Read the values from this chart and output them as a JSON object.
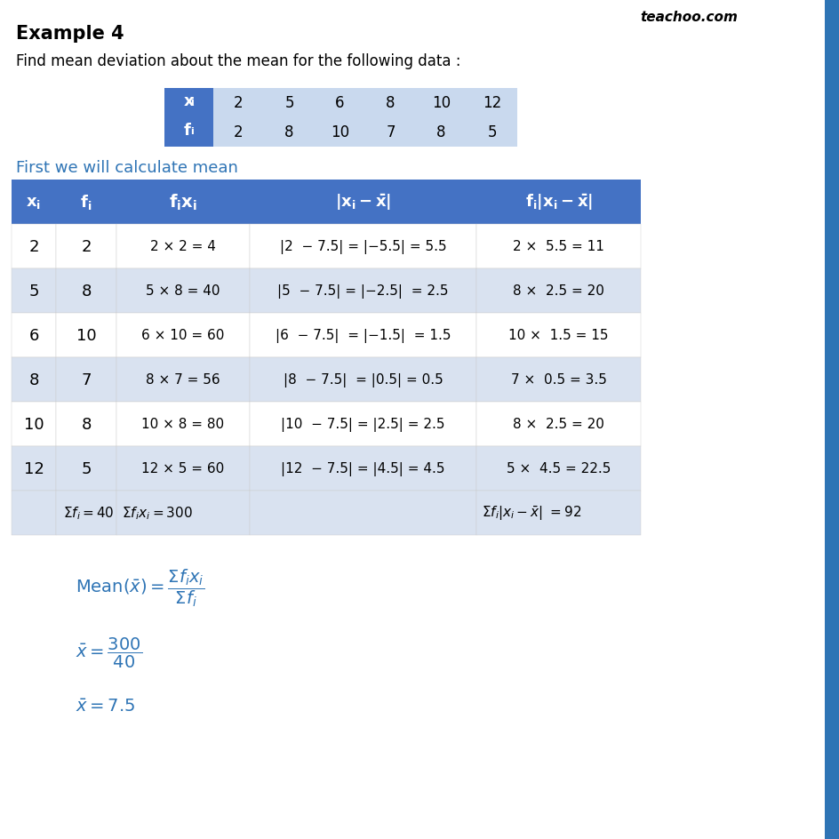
{
  "title": "Example 4",
  "subtitle": "Find mean deviation about the mean for the following data :",
  "watermark": "teachoo.com",
  "header_color": "#4472C4",
  "header_text_color": "#FFFFFF",
  "light_blue": "#C9D9EE",
  "alt_row": "#D9E2F0",
  "blue_text": "#2E74B5",
  "white": "#FFFFFF",
  "small_table": {
    "xi_vals": [
      2,
      5,
      6,
      8,
      10,
      12
    ],
    "fi_vals": [
      2,
      8,
      10,
      7,
      8,
      5
    ]
  },
  "main_rows": [
    [
      "2",
      "2",
      "2 × 2 = 4",
      "|2  − 7.5| = |−5.5| = 5.5",
      "2 ×  5.5 = 11"
    ],
    [
      "5",
      "8",
      "5 × 8 = 40",
      "|5  − 7.5| = |−2.5|  = 2.5",
      "8 ×  2.5 = 20"
    ],
    [
      "6",
      "10",
      "6 × 10 = 60",
      "|6  − 7.5|  = |−1.5|  = 1.5",
      "10 ×  1.5 = 15"
    ],
    [
      "8",
      "7",
      "8 × 7 = 56",
      "|8  − 7.5|  = |0.5| = 0.5",
      "7 ×  0.5 = 3.5"
    ],
    [
      "10",
      "8",
      "10 × 8 = 80",
      "|10  − 7.5| = |2.5| = 2.5",
      "8 ×  2.5 = 20"
    ],
    [
      "12",
      "5",
      "12 × 5 = 60",
      "|12  − 7.5| = |4.5| = 4.5",
      "5 ×  4.5 = 22.5"
    ]
  ]
}
